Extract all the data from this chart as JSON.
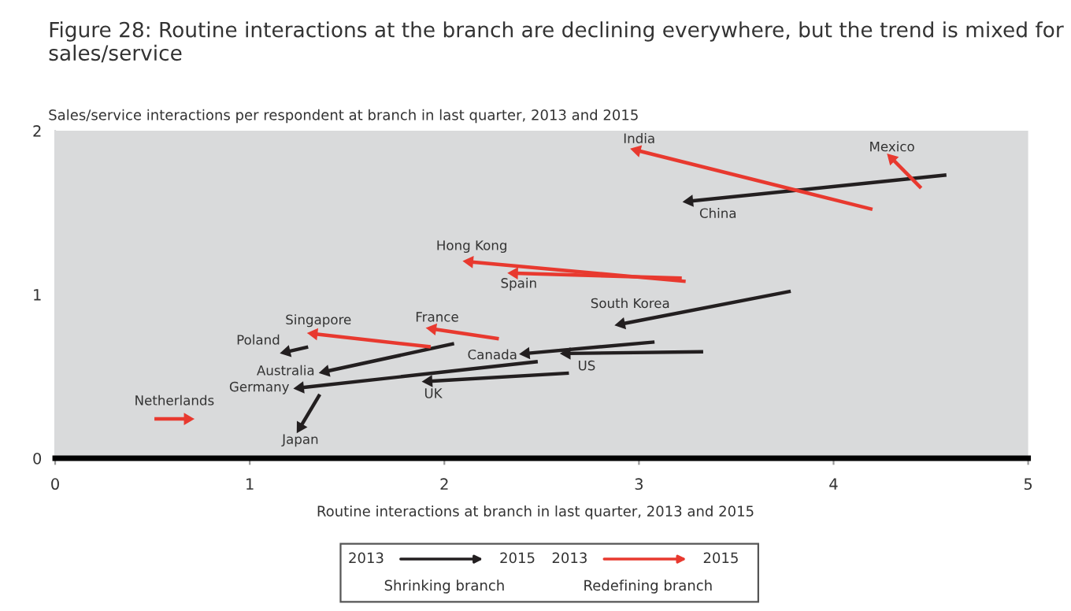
{
  "chart_data": {
    "type": "line",
    "title": "Figure 28: Routine interactions at the branch are declining everywhere, but the trend is mixed for sales/service",
    "ylabel": "Sales/service interactions per respondent at branch in last quarter, 2013 and 2015",
    "xlabel": "Routine interactions at branch in last quarter, 2013 and 2015",
    "xlim": [
      0,
      5
    ],
    "xticks": [
      0,
      1,
      2,
      3,
      4,
      5
    ],
    "ylim": [
      0,
      2
    ],
    "yticks": [
      0,
      1,
      2
    ],
    "grid": false,
    "marker": "triangle",
    "line_style": "solid",
    "annotations": [
      "2013",
      "2015",
      "Shrinking branch",
      "2013",
      "2015",
      "Redefining branch"
    ],
    "series": [
      {
        "name": "China",
        "color": "#231f20",
        "x": [
          4.58,
          3.26
        ],
        "values": [
          1.73,
          1.57
        ]
      },
      {
        "name": "South Korea",
        "color": "#231f20",
        "x": [
          3.78,
          2.91
        ],
        "values": [
          1.02,
          0.82
        ]
      },
      {
        "name": "Canada",
        "color": "#231f20",
        "x": [
          3.08,
          2.42
        ],
        "values": [
          0.71,
          0.64
        ]
      },
      {
        "name": "US",
        "color": "#231f20",
        "x": [
          3.33,
          2.63
        ],
        "values": [
          0.65,
          0.64
        ]
      },
      {
        "name": "UK",
        "color": "#231f20",
        "x": [
          2.64,
          1.92
        ],
        "values": [
          0.52,
          0.47
        ]
      },
      {
        "name": "Germany",
        "color": "#231f20",
        "x": [
          2.48,
          1.26
        ],
        "values": [
          0.59,
          0.43
        ]
      },
      {
        "name": "Australia",
        "color": "#231f20",
        "x": [
          2.05,
          1.39
        ],
        "values": [
          0.7,
          0.53
        ]
      },
      {
        "name": "Poland",
        "color": "#231f20",
        "x": [
          1.3,
          1.19
        ],
        "values": [
          0.68,
          0.65
        ]
      },
      {
        "name": "Japan",
        "color": "#231f20",
        "x": [
          1.36,
          1.26
        ],
        "values": [
          0.39,
          0.19
        ]
      },
      {
        "name": "India",
        "color": "#e8392f",
        "x": [
          4.2,
          2.99
        ],
        "values": [
          1.52,
          1.88
        ]
      },
      {
        "name": "Mexico",
        "color": "#e8392f",
        "x": [
          4.45,
          4.3
        ],
        "values": [
          1.65,
          1.83
        ]
      },
      {
        "name": "Hong Kong",
        "color": "#e8392f",
        "x": [
          3.24,
          2.13
        ],
        "values": [
          1.08,
          1.2
        ]
      },
      {
        "name": "Spain",
        "color": "#e8392f",
        "x": [
          3.22,
          2.36
        ],
        "values": [
          1.1,
          1.13
        ]
      },
      {
        "name": "France",
        "color": "#e8392f",
        "x": [
          2.28,
          1.94
        ],
        "values": [
          0.73,
          0.79
        ]
      },
      {
        "name": "Singapore",
        "color": "#e8392f",
        "x": [
          1.93,
          1.33
        ],
        "values": [
          0.68,
          0.76
        ]
      },
      {
        "name": "Netherlands",
        "color": "#e8392f",
        "x": [
          0.51,
          0.68
        ],
        "values": [
          0.24,
          0.24
        ]
      }
    ]
  }
}
